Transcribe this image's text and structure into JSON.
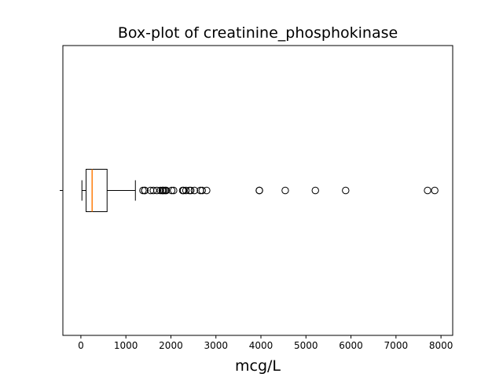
{
  "chart_data": {
    "type": "boxplot",
    "orientation": "horizontal",
    "title": "Box-plot of creatinine_phosphokinase",
    "xlabel": "mcg/L",
    "ylabel": "",
    "xlim": [
      -400,
      8260
    ],
    "xticks": [
      0,
      1000,
      2000,
      3000,
      4000,
      5000,
      6000,
      7000,
      8000
    ],
    "xtick_labels": [
      "0",
      "1000",
      "2000",
      "3000",
      "4000",
      "5000",
      "6000",
      "7000",
      "8000"
    ],
    "ytick_labels": [
      ""
    ],
    "box": {
      "whisker_low": 23,
      "q1": 116,
      "median": 250,
      "q3": 582,
      "whisker_high": 1211
    },
    "outliers": [
      1380,
      1419,
      1420,
      1548,
      1610,
      1688,
      1767,
      1808,
      1820,
      1846,
      1876,
      1896,
      2017,
      2060,
      2261,
      2281,
      2334,
      2413,
      2442,
      2522,
      2656,
      2695,
      2794,
      3964,
      3966,
      4540,
      5209,
      5882,
      7702,
      7861
    ],
    "grid": false,
    "colors": {
      "box": "#000000",
      "median": "#ff7f0e",
      "outlier": "#000000"
    }
  }
}
